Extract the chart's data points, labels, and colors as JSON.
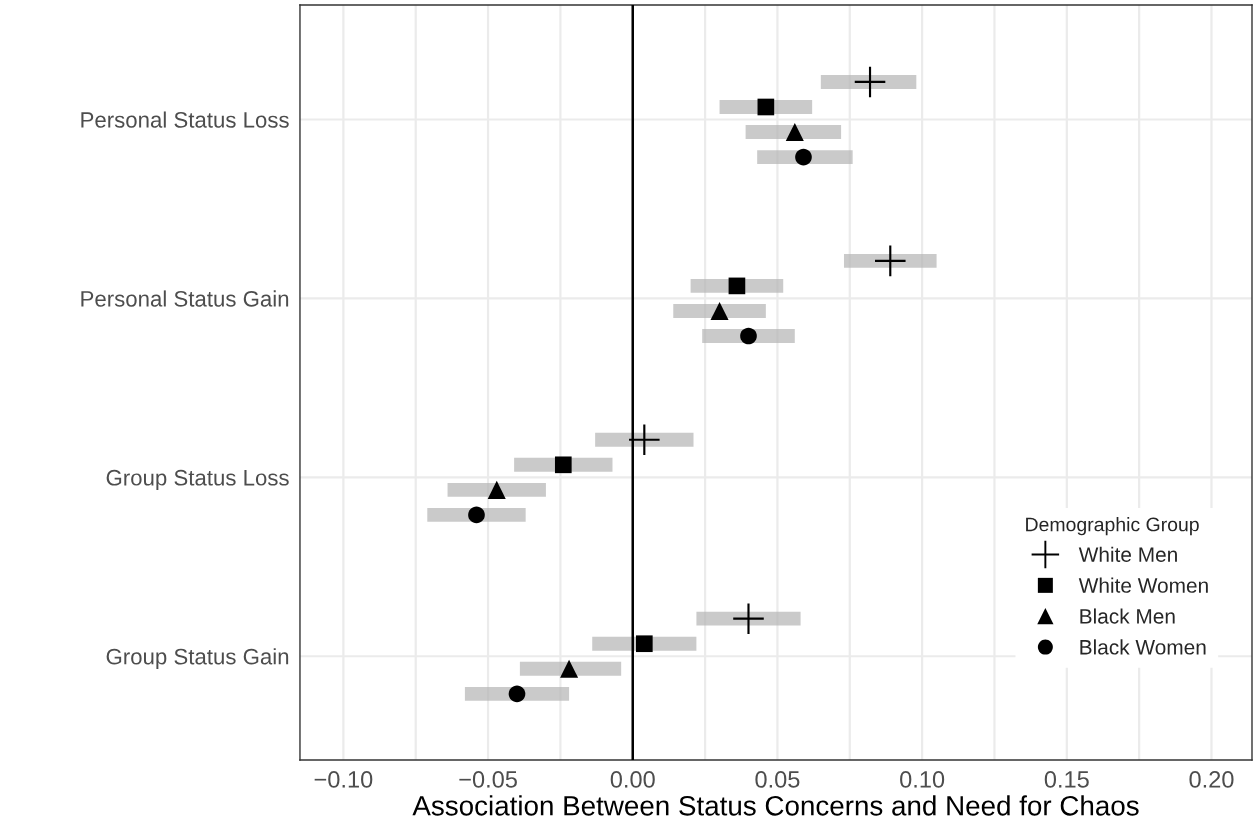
{
  "chart_data": {
    "type": "scatter",
    "orientation": "horizontal",
    "xlabel": "Association Between Status Concerns and Need for Chaos",
    "legend_title": "Demographic Group",
    "legend": "bottom right",
    "grid": true,
    "categories": [
      "Personal Status Loss",
      "Personal Status Gain",
      "Group Status Loss",
      "Group Status Gain"
    ],
    "xlim": [
      -0.115,
      0.214
    ],
    "xticks": [
      {
        "value": -0.1,
        "label": "−0.10"
      },
      {
        "value": -0.075,
        "label": null
      },
      {
        "value": -0.05,
        "label": "−0.05"
      },
      {
        "value": -0.025,
        "label": null
      },
      {
        "value": 0,
        "label": "0.00"
      },
      {
        "value": 0.025,
        "label": null
      },
      {
        "value": 0.05,
        "label": "0.05"
      },
      {
        "value": 0.075,
        "label": null
      },
      {
        "value": 0.1,
        "label": "0.10"
      },
      {
        "value": 0.125,
        "label": null
      },
      {
        "value": 0.15,
        "label": "0.15"
      },
      {
        "value": 0.175,
        "label": null
      },
      {
        "value": 0.2,
        "label": "0.20"
      }
    ],
    "ref_lines": [
      {
        "axis": "x",
        "value": 0,
        "color": "#000000"
      }
    ],
    "series": [
      {
        "name": "White Men",
        "color": "#000000",
        "marker": "cross",
        "values": [
          0.082,
          0.089,
          0.004,
          0.04
        ],
        "errors": [
          [
            0.065,
            0.098
          ],
          [
            0.073,
            0.105
          ],
          [
            -0.013,
            0.021
          ],
          [
            0.022,
            0.058
          ]
        ]
      },
      {
        "name": "White Women",
        "color": "#000000",
        "marker": "square",
        "values": [
          0.046,
          0.036,
          -0.024,
          0.004
        ],
        "errors": [
          [
            0.03,
            0.062
          ],
          [
            0.02,
            0.052
          ],
          [
            -0.041,
            -0.007
          ],
          [
            -0.014,
            0.022
          ]
        ]
      },
      {
        "name": "Black Men",
        "color": "#000000",
        "marker": "triangle",
        "values": [
          0.056,
          0.03,
          -0.047,
          -0.022
        ],
        "errors": [
          [
            0.039,
            0.072
          ],
          [
            0.014,
            0.046
          ],
          [
            -0.064,
            -0.03
          ],
          [
            -0.039,
            -0.004
          ]
        ]
      },
      {
        "name": "Black Women",
        "color": "#000000",
        "marker": "circle",
        "values": [
          0.059,
          0.04,
          -0.054,
          -0.04
        ],
        "errors": [
          [
            0.043,
            0.076
          ],
          [
            0.024,
            0.056
          ],
          [
            -0.071,
            -0.037
          ],
          [
            -0.058,
            -0.022
          ]
        ]
      }
    ]
  }
}
